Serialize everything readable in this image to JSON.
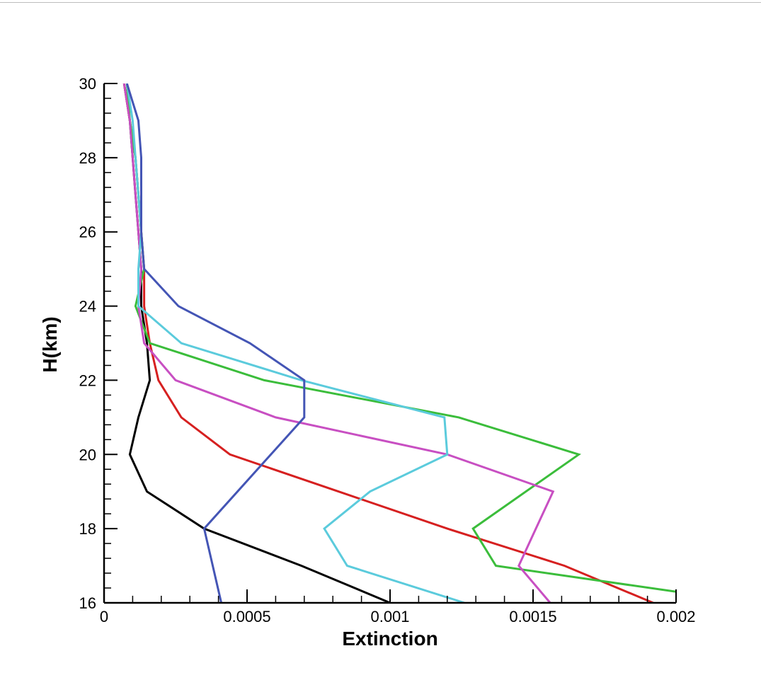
{
  "chart_data": {
    "type": "line",
    "title": "",
    "xlabel": "Extinction",
    "ylabel": "H(km)",
    "xlim": [
      0,
      0.002
    ],
    "ylim": [
      16,
      30
    ],
    "xticks": [
      0,
      0.0005,
      0.001,
      0.0015,
      0.002
    ],
    "xtick_labels": [
      "0",
      "0.0005",
      "0.001",
      "0.0015",
      "0.002"
    ],
    "yticks": [
      16,
      18,
      20,
      22,
      24,
      26,
      28,
      30
    ],
    "ytick_labels": [
      "16",
      "18",
      "20",
      "22",
      "24",
      "26",
      "28",
      "30"
    ],
    "grid": false,
    "legend": "none",
    "series": [
      {
        "color": "#000000",
        "points": [
          [
            0.001,
            16
          ],
          [
            0.00069,
            17
          ],
          [
            0.00035,
            18
          ],
          [
            0.00015,
            19
          ],
          [
            9e-05,
            20
          ],
          [
            0.00012,
            21
          ],
          [
            0.00016,
            22
          ],
          [
            0.00015,
            23
          ],
          [
            0.00013,
            24
          ],
          [
            0.00013,
            25
          ],
          [
            0.00012,
            26
          ],
          [
            0.00011,
            27
          ],
          [
            0.0001,
            28
          ],
          [
            9e-05,
            29
          ],
          [
            7e-05,
            30
          ]
        ]
      },
      {
        "color": "#d62020",
        "points": [
          [
            0.00192,
            16
          ],
          [
            0.00161,
            17
          ],
          [
            0.0012,
            18
          ],
          [
            0.00082,
            19
          ],
          [
            0.00044,
            20
          ],
          [
            0.00027,
            21
          ],
          [
            0.00019,
            22
          ],
          [
            0.00016,
            23
          ],
          [
            0.00014,
            24
          ],
          [
            0.00014,
            25
          ],
          [
            0.00013,
            26
          ],
          [
            0.00012,
            27
          ],
          [
            0.00011,
            28
          ],
          [
            9e-05,
            29
          ],
          [
            7e-05,
            30
          ]
        ]
      },
      {
        "color": "#3bbd3b",
        "points": [
          [
            0.002,
            16.3
          ],
          [
            0.00137,
            17
          ],
          [
            0.00129,
            18
          ],
          [
            0.00166,
            20
          ],
          [
            0.00124,
            21
          ],
          [
            0.00056,
            22
          ],
          [
            0.00016,
            23
          ],
          [
            0.00011,
            24
          ],
          [
            0.00014,
            25
          ],
          [
            0.00013,
            26
          ],
          [
            0.00012,
            27
          ],
          [
            0.00011,
            28
          ],
          [
            9e-05,
            29
          ],
          [
            8e-05,
            30
          ]
        ]
      },
      {
        "color": "#c84fc2",
        "points": [
          [
            0.00156,
            16
          ],
          [
            0.00145,
            17
          ],
          [
            0.00151,
            18
          ],
          [
            0.00157,
            19
          ],
          [
            0.0012,
            20
          ],
          [
            0.0006,
            21
          ],
          [
            0.00025,
            22
          ],
          [
            0.00014,
            23
          ],
          [
            0.00012,
            24
          ],
          [
            0.00013,
            25
          ],
          [
            0.00012,
            26
          ],
          [
            0.00011,
            27
          ],
          [
            0.0001,
            28
          ],
          [
            9e-05,
            29
          ],
          [
            7e-05,
            30
          ]
        ]
      },
      {
        "color": "#5bcbdc",
        "points": [
          [
            0.00126,
            16
          ],
          [
            0.00085,
            17
          ],
          [
            0.00077,
            18
          ],
          [
            0.00093,
            19
          ],
          [
            0.0012,
            20
          ],
          [
            0.00119,
            21
          ],
          [
            0.00069,
            22
          ],
          [
            0.00027,
            23
          ],
          [
            0.00012,
            24
          ],
          [
            0.00012,
            25
          ],
          [
            0.00013,
            26
          ],
          [
            0.00012,
            27
          ],
          [
            0.00011,
            28
          ],
          [
            0.0001,
            29
          ],
          [
            8e-05,
            30
          ]
        ]
      },
      {
        "color": "#4455b5",
        "points": [
          [
            0.00041,
            16
          ],
          [
            0.00035,
            18
          ],
          [
            0.0007,
            21
          ],
          [
            0.0007,
            22
          ],
          [
            0.00051,
            23
          ],
          [
            0.00026,
            24
          ],
          [
            0.00014,
            25
          ],
          [
            0.00013,
            26
          ],
          [
            0.00013,
            27
          ],
          [
            0.00013,
            28
          ],
          [
            0.00012,
            29
          ],
          [
            8e-05,
            30
          ]
        ]
      }
    ]
  }
}
